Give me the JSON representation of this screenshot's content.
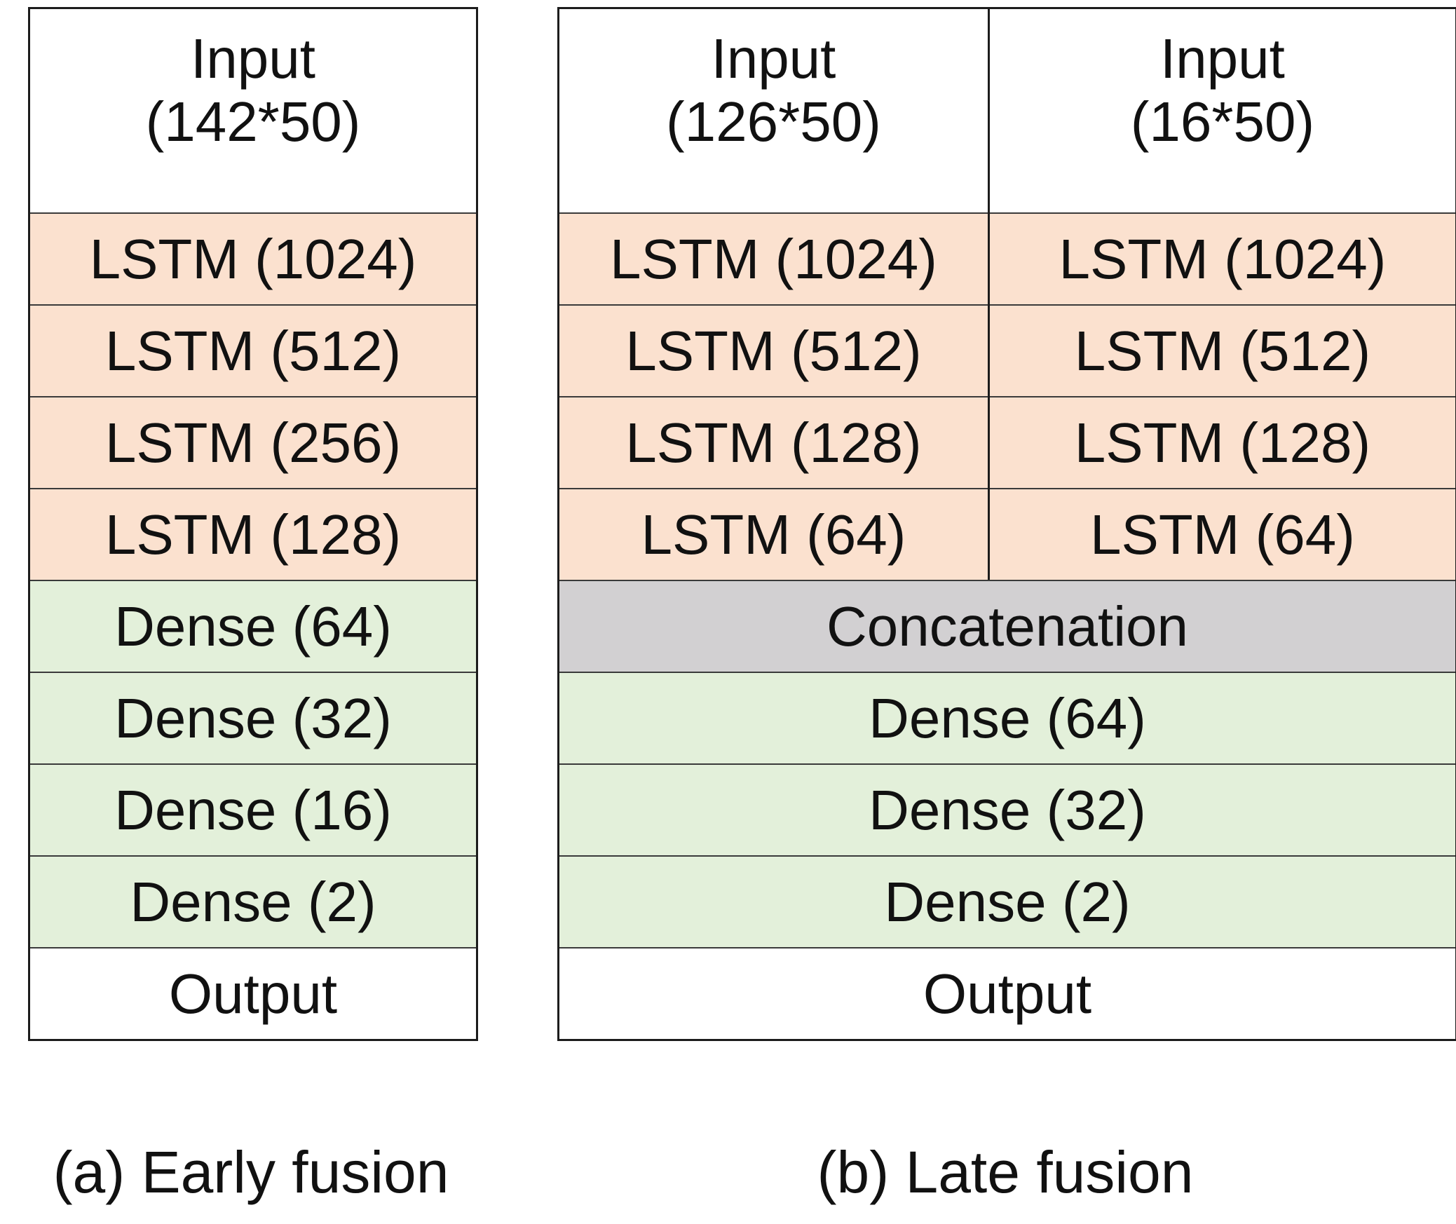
{
  "colors": {
    "lstm_fill": "#fbe1cf",
    "dense_fill": "#e3f0da",
    "concat_fill": "#d2d0d2",
    "io_fill": "#ffffff",
    "border_outer": "#1c1c1c",
    "border_inner": "#3a3a3a",
    "text": "#111111",
    "background": "#ffffff"
  },
  "diagram_a": {
    "caption": "(a) Early fusion",
    "rows": [
      {
        "label": "Input\n(142*50)",
        "kind": "input"
      },
      {
        "label": "LSTM (1024)",
        "kind": "lstm"
      },
      {
        "label": "LSTM (512)",
        "kind": "lstm"
      },
      {
        "label": "LSTM (256)",
        "kind": "lstm"
      },
      {
        "label": "LSTM (128)",
        "kind": "lstm"
      },
      {
        "label": "Dense (64)",
        "kind": "dense"
      },
      {
        "label": "Dense (32)",
        "kind": "dense"
      },
      {
        "label": "Dense (16)",
        "kind": "dense"
      },
      {
        "label": "Dense (2)",
        "kind": "dense"
      },
      {
        "label": "Output",
        "kind": "output"
      }
    ]
  },
  "diagram_b": {
    "caption": "(b) Late fusion",
    "left_branch": {
      "rows": [
        {
          "label": "Input\n(126*50)",
          "kind": "input"
        },
        {
          "label": "LSTM (1024)",
          "kind": "lstm"
        },
        {
          "label": "LSTM (512)",
          "kind": "lstm"
        },
        {
          "label": "LSTM (128)",
          "kind": "lstm"
        },
        {
          "label": "LSTM (64)",
          "kind": "lstm"
        }
      ]
    },
    "right_branch": {
      "rows": [
        {
          "label": "Input\n(16*50)",
          "kind": "input"
        },
        {
          "label": "LSTM (1024)",
          "kind": "lstm"
        },
        {
          "label": "LSTM (512)",
          "kind": "lstm"
        },
        {
          "label": "LSTM (128)",
          "kind": "lstm"
        },
        {
          "label": "LSTM (64)",
          "kind": "lstm"
        }
      ]
    },
    "merged_rows": [
      {
        "label": "Concatenation",
        "kind": "concat"
      },
      {
        "label": "Dense (64)",
        "kind": "dense"
      },
      {
        "label": "Dense (32)",
        "kind": "dense"
      },
      {
        "label": "Dense (2)",
        "kind": "dense"
      },
      {
        "label": "Output",
        "kind": "output"
      }
    ]
  }
}
